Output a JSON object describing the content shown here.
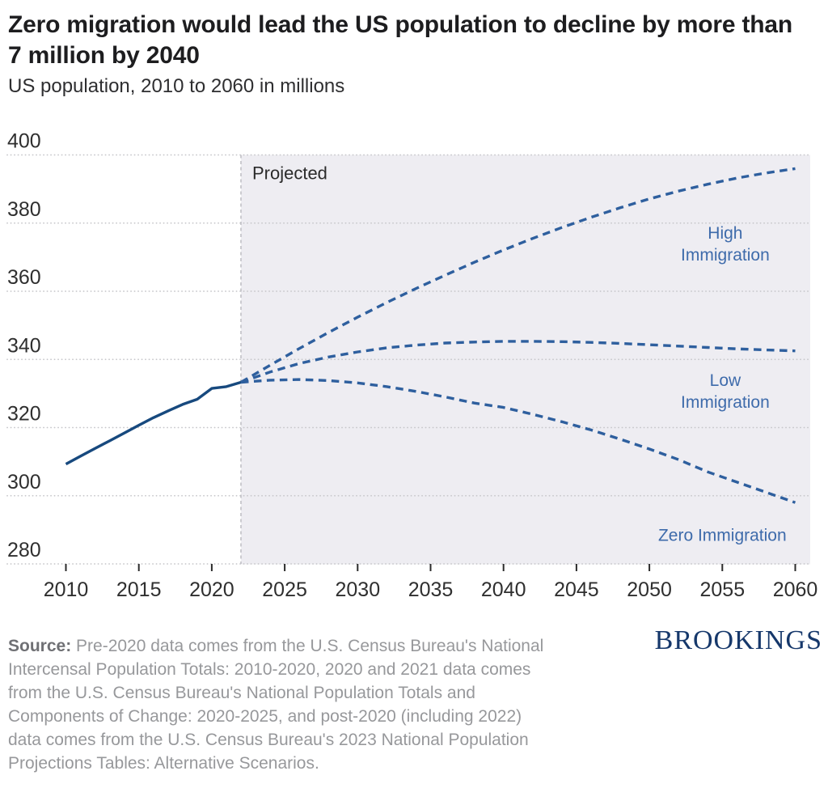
{
  "header": {
    "title_lines": [
      "Zero migration would lead the US population to decline by more than",
      "7 million by 2040"
    ],
    "subtitle": "US population, 2010 to 2060 in millions"
  },
  "footer": {
    "source_label": "Source:",
    "source_lines": [
      " Pre-2020 data comes from the U.S. Census Bureau's National",
      "Intercensal Population Totals: 2010-2020, 2020 and 2021 data comes",
      "from the U.S. Census Bureau's National Population Totals and",
      "Components of Change: 2020-2025, and post-2020 (including 2022)",
      "data comes from the U.S. Census Bureau's 2023 National Population",
      "Projections Tables: Alternative Scenarios."
    ],
    "logo_text": "BROOKINGS",
    "logo_color": "#16386b"
  },
  "chart_data": {
    "type": "line",
    "title": "Zero migration would lead the US population to decline by more than 7 million by 2040",
    "subtitle": "US population, 2010 to 2060 in millions",
    "x_axis": {
      "ticks": [
        2010,
        2015,
        2020,
        2025,
        2030,
        2035,
        2040,
        2045,
        2050,
        2055,
        2060
      ],
      "range": [
        2010,
        2060
      ]
    },
    "y_axis": {
      "ticks": [
        280,
        300,
        320,
        340,
        360,
        380,
        400
      ],
      "range": [
        280,
        400
      ],
      "unit": "millions",
      "grid": "dotted"
    },
    "projection": {
      "label": "Projected",
      "start_year": 2022,
      "region_color": "#eeedf2",
      "divider_color": "#bebec3"
    },
    "colors": {
      "historical_line": "#17497e",
      "projection_line": "#2e5f9e",
      "series_label": "#3e6bab",
      "axis_text": "#2f2f2f",
      "grid_dots": "#c7c7cb",
      "projected_text": "#2b2b2b"
    },
    "series": [
      {
        "name": "Historical",
        "style": "solid",
        "years": [
          2010,
          2011,
          2012,
          2013,
          2014,
          2015,
          2016,
          2017,
          2018,
          2019,
          2020,
          2021,
          2022
        ],
        "values": [
          309.3,
          311.6,
          313.9,
          316.1,
          318.4,
          320.7,
          322.9,
          324.9,
          326.8,
          328.3,
          331.5,
          332.0,
          333.3
        ]
      },
      {
        "name": "High Immigration",
        "style": "dashed",
        "label_lines": [
          "High",
          "Immigration"
        ],
        "label_anchor": {
          "year": 2055.2,
          "value": 374.0
        },
        "years": [
          2022,
          2024,
          2026,
          2028,
          2030,
          2032,
          2034,
          2036,
          2038,
          2040,
          2042,
          2044,
          2046,
          2048,
          2050,
          2052,
          2054,
          2056,
          2058,
          2060
        ],
        "values": [
          333.3,
          338.3,
          343.2,
          347.9,
          352.4,
          356.7,
          360.8,
          364.7,
          368.5,
          372.1,
          375.5,
          378.7,
          381.7,
          384.5,
          387.1,
          389.4,
          391.4,
          393.2,
          394.7,
          396.0
        ]
      },
      {
        "name": "Low Immigration",
        "style": "dashed",
        "label_lines": [
          "Low",
          "Immigration"
        ],
        "label_anchor": {
          "year": 2055.2,
          "value": 330.8
        },
        "years": [
          2022,
          2024,
          2026,
          2028,
          2030,
          2032,
          2034,
          2036,
          2038,
          2040,
          2042,
          2044,
          2046,
          2048,
          2050,
          2052,
          2054,
          2056,
          2058,
          2060
        ],
        "values": [
          333.3,
          336.3,
          338.8,
          340.7,
          342.2,
          343.4,
          344.2,
          344.8,
          345.1,
          345.3,
          345.3,
          345.2,
          345.0,
          344.7,
          344.3,
          343.9,
          343.5,
          343.1,
          342.8,
          342.5
        ]
      },
      {
        "name": "Zero Immigration",
        "style": "dashed",
        "label_lines": [
          "Zero Immigration"
        ],
        "label_anchor": {
          "year": 2055.0,
          "value": 288.5
        },
        "years": [
          2022,
          2024,
          2026,
          2028,
          2030,
          2032,
          2034,
          2036,
          2038,
          2040,
          2042,
          2044,
          2046,
          2048,
          2050,
          2052,
          2054,
          2056,
          2058,
          2060
        ],
        "values": [
          333.3,
          333.9,
          334.1,
          333.8,
          333.1,
          332.0,
          330.6,
          329.0,
          327.2,
          325.9,
          323.9,
          321.7,
          319.3,
          316.6,
          313.7,
          310.6,
          307.0,
          304.0,
          301.0,
          298.0
        ]
      }
    ]
  }
}
